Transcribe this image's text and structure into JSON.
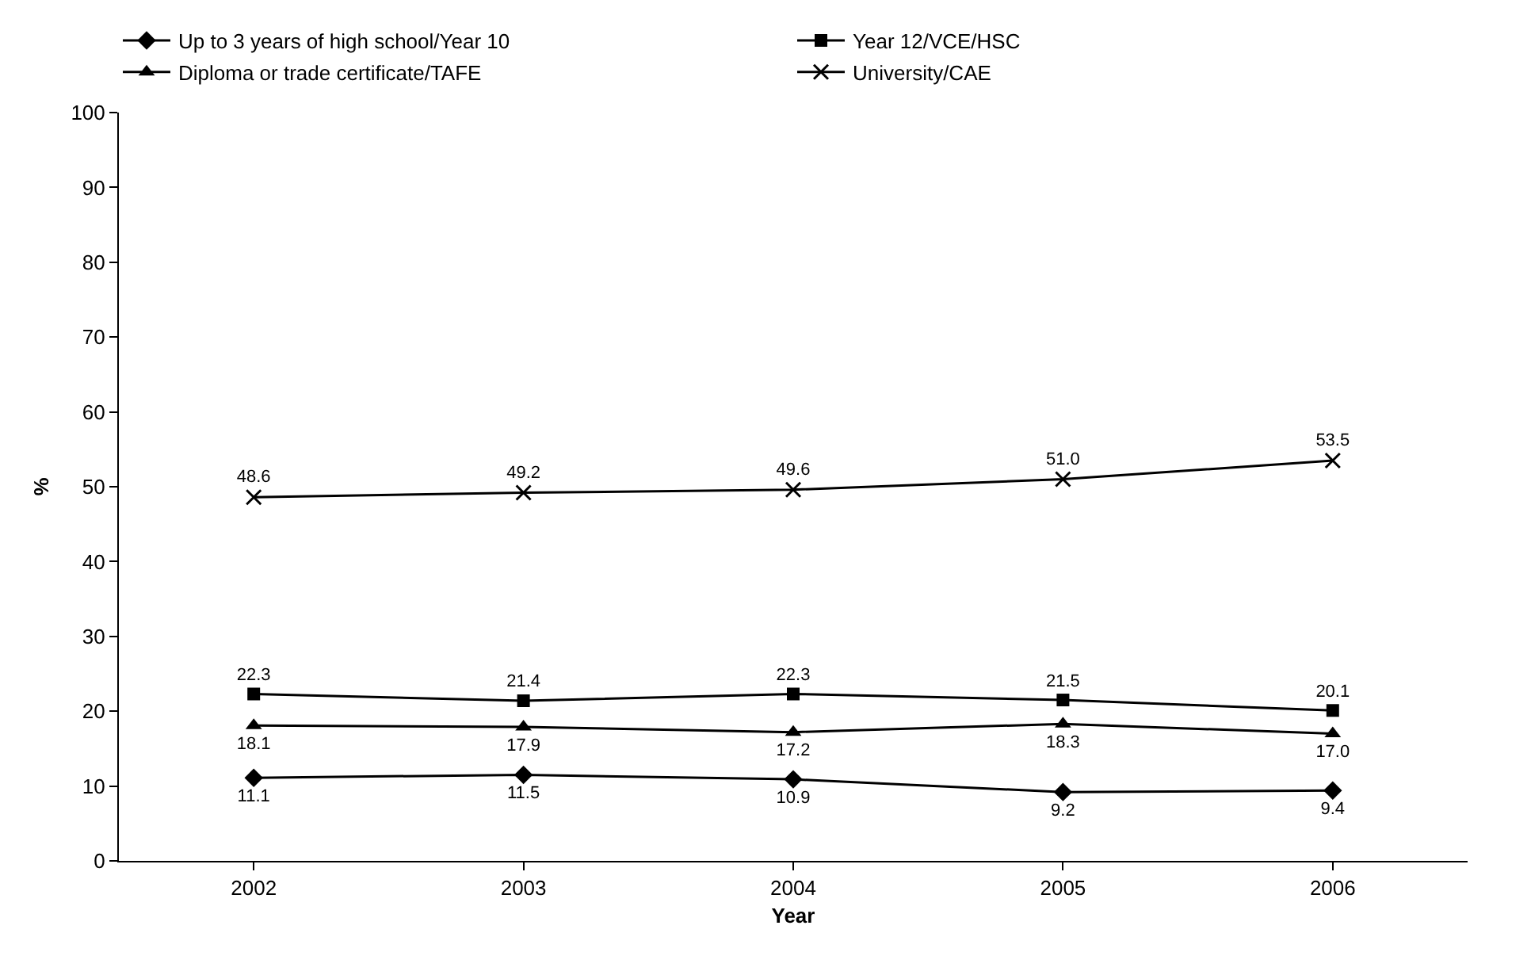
{
  "chart_data": {
    "type": "line",
    "xlabel": "Year",
    "ylabel": "%",
    "categories": [
      "2002",
      "2003",
      "2004",
      "2005",
      "2006"
    ],
    "series": [
      {
        "name": "Up to 3 years of high school/Year 10",
        "color": "#000000",
        "marker": "diamond",
        "values": [
          11.1,
          11.5,
          10.9,
          9.2,
          9.4
        ],
        "value_labels": [
          "11.1",
          "11.5",
          "10.9",
          "9.2",
          "9.4"
        ]
      },
      {
        "name": "Year 12/VCE/HSC",
        "color": "#000000",
        "marker": "square",
        "values": [
          22.3,
          21.4,
          22.3,
          21.5,
          20.1
        ],
        "value_labels": [
          "22.3",
          "21.4",
          "22.3",
          "21.5",
          "20.1"
        ]
      },
      {
        "name": "Diploma or trade certificate/TAFE",
        "color": "#000000",
        "marker": "triangle",
        "values": [
          18.1,
          17.9,
          17.2,
          18.3,
          17.0
        ],
        "value_labels": [
          "18.1",
          "17.9",
          "17.2",
          "18.3",
          "17.0"
        ]
      },
      {
        "name": "University/CAE",
        "color": "#000000",
        "marker": "cross",
        "values": [
          48.6,
          49.2,
          49.6,
          51.0,
          53.5
        ],
        "value_labels": [
          "48.6",
          "49.2",
          "49.6",
          "51.0",
          "53.5"
        ]
      }
    ],
    "ylim": [
      0,
      100
    ],
    "yticks": [
      0,
      10,
      20,
      30,
      40,
      50,
      60,
      70,
      80,
      90,
      100
    ],
    "grid": false,
    "legend": "top",
    "line_style": "solid"
  }
}
